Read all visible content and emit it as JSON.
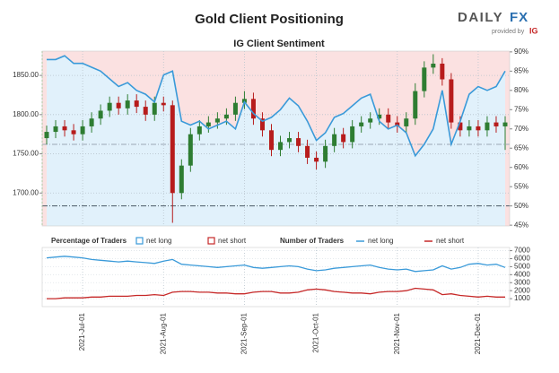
{
  "logo": {
    "brand_left": "DAILY",
    "brand_right": "FX",
    "tagline": "provided by",
    "badge": "IG"
  },
  "chart_data": [
    {
      "type": "candlestick",
      "title": "Gold Client Positioning",
      "subtitle": "IG Client Sentiment",
      "legend_title": "Percentage of Traders",
      "legend": [
        {
          "name": "net long",
          "color": "#3a9ad9"
        },
        {
          "name": "net short",
          "color": "#c62828"
        }
      ],
      "up_color": "#2e7d32",
      "down_color": "#b71c1c",
      "long_shade": "#e1f1fb",
      "short_shade": "#fbe1e1",
      "open": [
        1770,
        1778,
        1785,
        1780,
        1775,
        1785,
        1795,
        1805,
        1815,
        1808,
        1818,
        1810,
        1800,
        1815,
        1812,
        1700,
        1735,
        1775,
        1785,
        1790,
        1795,
        1800,
        1815,
        1820,
        1795,
        1780,
        1755,
        1765,
        1770,
        1760,
        1745,
        1740,
        1760,
        1775,
        1765,
        1785,
        1790,
        1795,
        1800,
        1790,
        1785,
        1795,
        1830,
        1860,
        1865,
        1845,
        1790,
        1780,
        1785,
        1780,
        1790,
        1785
      ],
      "high": [
        1786,
        1793,
        1793,
        1788,
        1793,
        1803,
        1813,
        1823,
        1823,
        1826,
        1826,
        1818,
        1823,
        1823,
        1818,
        1743,
        1783,
        1793,
        1798,
        1803,
        1808,
        1823,
        1830,
        1828,
        1803,
        1788,
        1773,
        1778,
        1778,
        1768,
        1753,
        1768,
        1783,
        1783,
        1793,
        1798,
        1803,
        1808,
        1808,
        1798,
        1803,
        1840,
        1868,
        1877,
        1872,
        1853,
        1798,
        1793,
        1793,
        1798,
        1798,
        1798
      ],
      "low": [
        1762,
        1770,
        1772,
        1767,
        1767,
        1777,
        1787,
        1797,
        1800,
        1800,
        1802,
        1792,
        1792,
        1804,
        1662,
        1692,
        1727,
        1767,
        1777,
        1782,
        1787,
        1792,
        1807,
        1787,
        1772,
        1747,
        1747,
        1757,
        1752,
        1737,
        1730,
        1732,
        1752,
        1757,
        1757,
        1777,
        1782,
        1787,
        1782,
        1777,
        1777,
        1787,
        1822,
        1852,
        1837,
        1782,
        1772,
        1772,
        1772,
        1772,
        1777,
        1755
      ],
      "close": [
        1778,
        1785,
        1780,
        1775,
        1785,
        1795,
        1805,
        1815,
        1808,
        1818,
        1810,
        1800,
        1815,
        1812,
        1700,
        1735,
        1775,
        1785,
        1790,
        1795,
        1800,
        1815,
        1820,
        1795,
        1780,
        1755,
        1765,
        1770,
        1760,
        1745,
        1740,
        1760,
        1775,
        1765,
        1785,
        1790,
        1795,
        1800,
        1790,
        1785,
        1795,
        1830,
        1860,
        1865,
        1845,
        1790,
        1780,
        1785,
        1780,
        1790,
        1785,
        1790
      ],
      "series": [
        {
          "name": "net long",
          "axis": "y2",
          "color": "#3a9ad9",
          "values": [
            88,
            88,
            89,
            87,
            87,
            86,
            85,
            83,
            81,
            82,
            80,
            79,
            77,
            84,
            85,
            72,
            71,
            72,
            70,
            71,
            72,
            70,
            77,
            74,
            72,
            73,
            75,
            78,
            76,
            72,
            67,
            69,
            73,
            74,
            76,
            78,
            79,
            72,
            70,
            71,
            69,
            63,
            66,
            70,
            80,
            66,
            72,
            79,
            81,
            80,
            81,
            85
          ]
        }
      ],
      "reference_lines": [
        {
          "value": 1762,
          "axis": "y",
          "color": "#9aa7b5"
        },
        {
          "value": 50,
          "axis": "y2",
          "color": "#4a5866"
        }
      ],
      "ylim": [
        1658,
        1881
      ],
      "yticks": [
        {
          "value": 1700,
          "label": "1700.00"
        },
        {
          "value": 1750,
          "label": "1750.00"
        },
        {
          "value": 1800,
          "label": "1800.00"
        },
        {
          "value": 1850,
          "label": "1850.00"
        }
      ],
      "y2lim": [
        44.8,
        90.2
      ],
      "y2ticks": [
        {
          "value": 45,
          "label": "45%"
        },
        {
          "value": 50,
          "label": "50%"
        },
        {
          "value": 55,
          "label": "55%"
        },
        {
          "value": 60,
          "label": "60%"
        },
        {
          "value": 65,
          "label": "65%"
        },
        {
          "value": 70,
          "label": "70%"
        },
        {
          "value": 75,
          "label": "75%"
        },
        {
          "value": 80,
          "label": "80%"
        },
        {
          "value": 85,
          "label": "85%"
        },
        {
          "value": 90,
          "label": "90%"
        }
      ],
      "grid": true
    },
    {
      "type": "line",
      "legend_title": "Number of Traders",
      "categories": [
        null,
        null,
        null,
        null,
        "2021-Jul-01",
        null,
        null,
        null,
        null,
        null,
        null,
        null,
        null,
        "2021-Aug-01",
        null,
        null,
        null,
        null,
        null,
        null,
        null,
        null,
        "2021-Sep-01",
        null,
        null,
        null,
        null,
        null,
        null,
        null,
        "2021-Oct-01",
        null,
        null,
        null,
        null,
        null,
        null,
        null,
        null,
        "2021-Nov-01",
        null,
        null,
        null,
        null,
        null,
        null,
        null,
        null,
        "2021-Dec-01",
        null,
        null,
        null
      ],
      "series": [
        {
          "name": "net long",
          "color": "#3a9ad9",
          "values": [
            6100,
            6200,
            6300,
            6200,
            6100,
            5900,
            5800,
            5700,
            5600,
            5700,
            5600,
            5500,
            5400,
            5700,
            5900,
            5300,
            5200,
            5100,
            5000,
            4900,
            5000,
            5100,
            5200,
            4900,
            4800,
            4900,
            5000,
            5100,
            5000,
            4700,
            4500,
            4600,
            4800,
            4900,
            5000,
            5100,
            5200,
            4900,
            4700,
            4600,
            4700,
            4400,
            4500,
            4600,
            5100,
            4700,
            4900,
            5300,
            5400,
            5200,
            5300,
            4900
          ]
        },
        {
          "name": "net short",
          "color": "#c62828",
          "values": [
            1000,
            1000,
            1100,
            1100,
            1100,
            1200,
            1200,
            1300,
            1300,
            1300,
            1400,
            1400,
            1500,
            1400,
            1800,
            1900,
            1900,
            1800,
            1800,
            1700,
            1700,
            1600,
            1600,
            1800,
            1900,
            1900,
            1700,
            1700,
            1800,
            2100,
            2200,
            2100,
            1900,
            1800,
            1700,
            1700,
            1600,
            1800,
            1900,
            1900,
            2000,
            2300,
            2200,
            2100,
            1500,
            1600,
            1400,
            1300,
            1200,
            1300,
            1200,
            1200
          ]
        }
      ],
      "ylim": [
        0,
        7400
      ],
      "yticks": [
        1000,
        2000,
        3000,
        4000,
        5000,
        6000,
        7000
      ],
      "grid": true
    }
  ]
}
